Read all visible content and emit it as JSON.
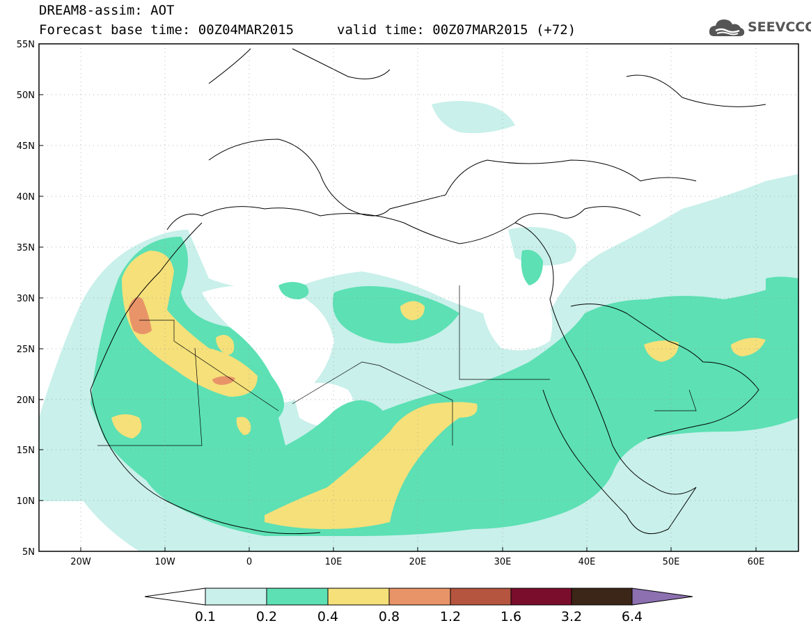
{
  "header": {
    "title": "DREAM8-assim: AOT",
    "base_time": "Forecast base time: 00Z04MAR2015",
    "valid_time": "valid time: 00Z07MAR2015 (+72)"
  },
  "logo": {
    "text": "SEEVCCC",
    "icon": "cloud-logo-icon",
    "color": "#555555"
  },
  "map": {
    "lon_labels": [
      "20W",
      "10W",
      "0",
      "10E",
      "20E",
      "30E",
      "40E",
      "50E",
      "60E"
    ],
    "lat_labels": [
      "55N",
      "50N",
      "45N",
      "40N",
      "35N",
      "30N",
      "25N",
      "20N",
      "15N",
      "10N",
      "5N"
    ]
  },
  "colorbar": {
    "levels": [
      "0.1",
      "0.2",
      "0.4",
      "0.8",
      "1.2",
      "1.6",
      "3.2",
      "6.4"
    ],
    "colors": [
      "#ffffff",
      "#c9f0ea",
      "#5ce0b4",
      "#f5e07a",
      "#e89468",
      "#b5553f",
      "#7a0d2c",
      "#3b2617",
      "#8c70b0"
    ]
  }
}
